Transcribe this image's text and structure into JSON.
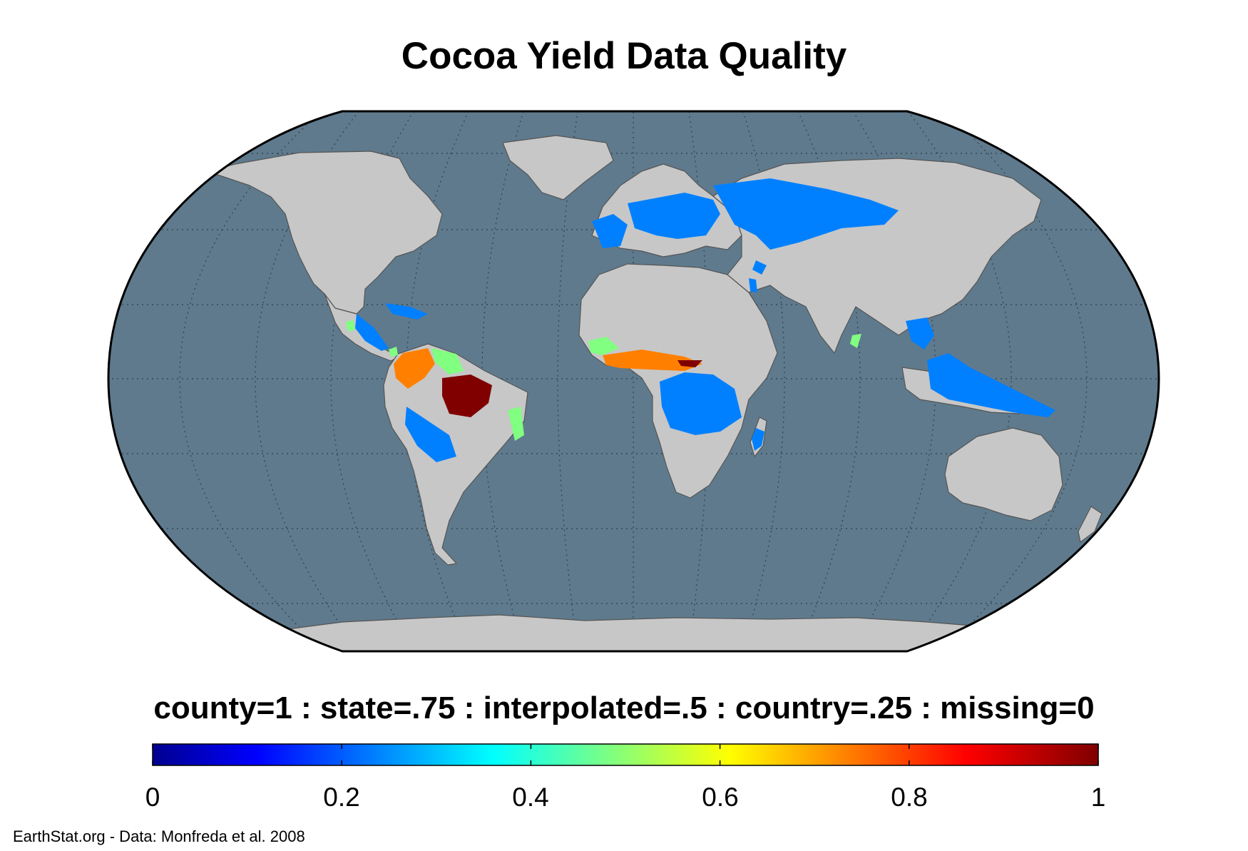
{
  "title": "Cocoa Yield Data Quality",
  "legend": {
    "caption": "county=1 : state=.75 : interpolated=.5 : country=.25 : missing=0",
    "min": 0,
    "max": 1,
    "ticks": [
      "0",
      "0.2",
      "0.4",
      "0.6",
      "0.8",
      "1"
    ],
    "colormap": "jet"
  },
  "credit": "EarthStat.org - Data: Monfreda et al. 2008",
  "colors": {
    "ocean": "#5f7a8d",
    "land": "#c7c7c7",
    "border": "#555555",
    "graticule": "#2f3e4a",
    "outline": "#000000"
  },
  "map": {
    "projection": "Robinson",
    "graticule": true,
    "categories": [
      {
        "label": "country",
        "value": 0.25
      },
      {
        "label": "interpolated",
        "value": 0.5
      },
      {
        "label": "state",
        "value": 0.75
      },
      {
        "label": "county",
        "value": 1
      }
    ]
  }
}
